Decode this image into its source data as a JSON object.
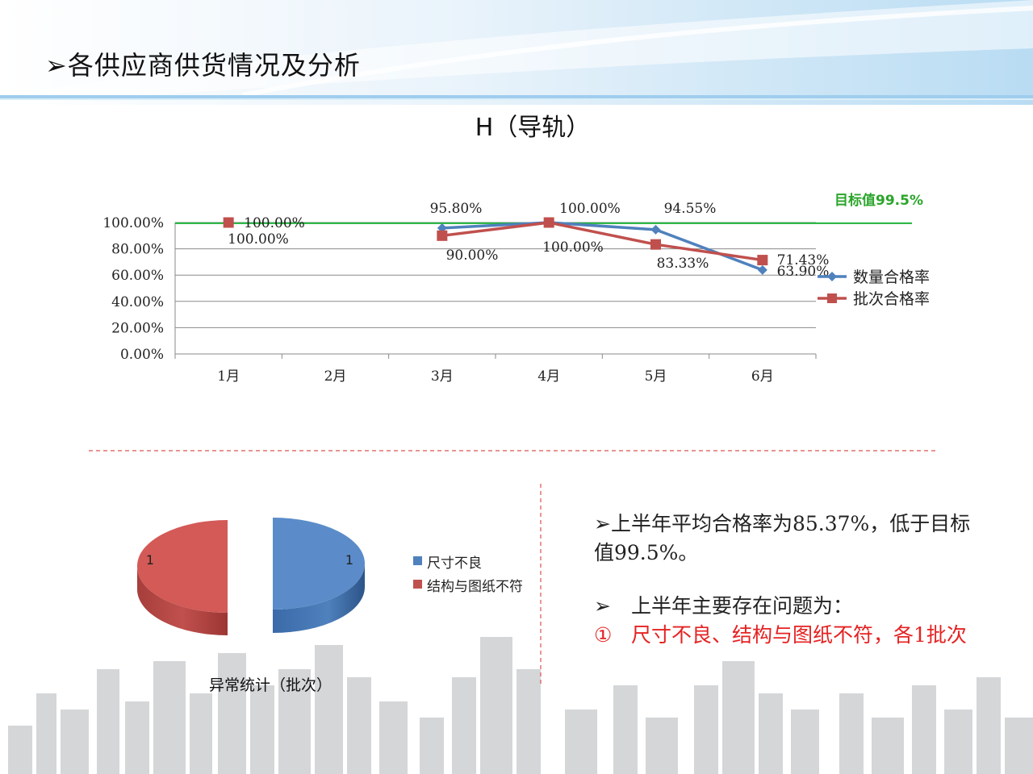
{
  "slide_title": "➢各供应商供货情况及分析",
  "chart_data": [
    {
      "type": "line",
      "title": "H（导轨）",
      "categories": [
        "1月",
        "2月",
        "3月",
        "4月",
        "5月",
        "6月"
      ],
      "y_ticks": [
        "100.00%",
        "80.00%",
        "60.00%",
        "40.00%",
        "20.00%",
        "0.00%"
      ],
      "ylim": [
        0,
        100
      ],
      "grid": true,
      "legend_position": "right",
      "target": {
        "label": "目标值99.5%",
        "value": 99.5,
        "color": "#1fb33a"
      },
      "series": [
        {
          "name": "数量合格率",
          "color": "#4f81bd",
          "marker": "diamond",
          "values": [
            100.0,
            null,
            95.8,
            100.0,
            94.55,
            63.9
          ],
          "labels": [
            "",
            "",
            "95.80%",
            "100.00%",
            "94.55%",
            "63.90%"
          ]
        },
        {
          "name": "批次合格率",
          "color": "#c0504d",
          "marker": "square",
          "values": [
            100.0,
            null,
            90.0,
            100.0,
            83.33,
            71.43
          ],
          "labels": [
            "100.00%",
            "",
            "90.00%",
            "100.00%",
            "83.33%",
            "71.43%"
          ]
        }
      ],
      "extra_labels": [
        "100.00%"
      ]
    },
    {
      "type": "pie",
      "title": "异常统计（批次）",
      "slices": [
        {
          "name": "尺寸不良",
          "value": 1,
          "color": "#4f81bd"
        },
        {
          "name": "结构与图纸不符",
          "value": 1,
          "color": "#c0504d"
        }
      ]
    }
  ],
  "analysis": {
    "line1": "➢上半年平均合格率为85.37%，低于目标值99.5%。",
    "line2_marker": "➢",
    "line2": "上半年主要存在问题为：",
    "line3_marker": "①",
    "line3": "尺寸不良、结构与图纸不符，各1批次"
  }
}
